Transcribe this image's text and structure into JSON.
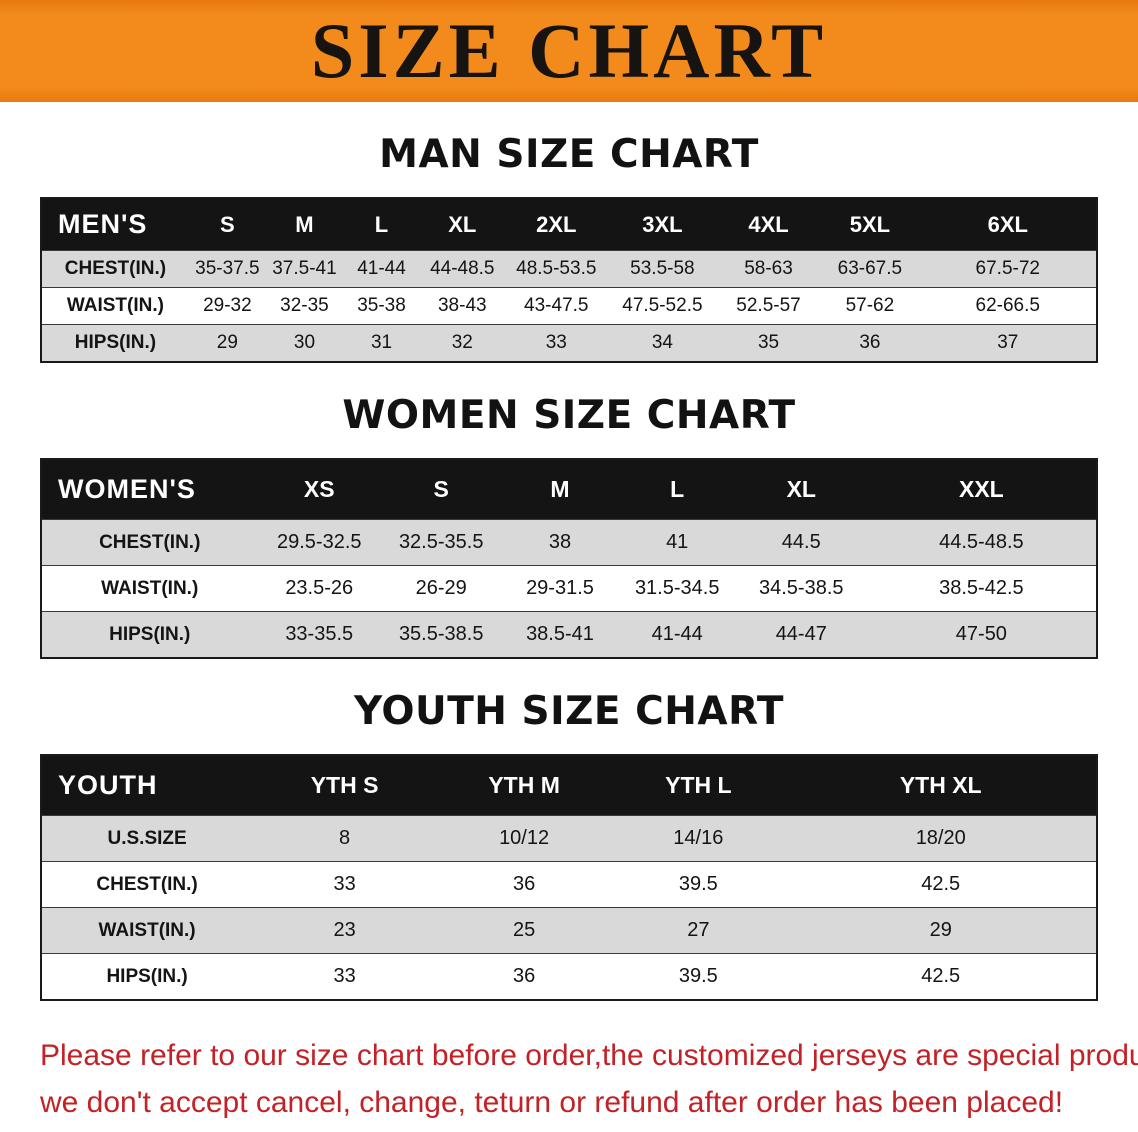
{
  "banner": {
    "title": "SIZE CHART"
  },
  "colors": {
    "banner_bg": "#f28a1c",
    "table_header_bg": "#141414",
    "table_header_text": "#ffffff",
    "stripe_row_bg": "#d9d9d9",
    "footer_text": "#c32126",
    "body_text": "#141414"
  },
  "sections": [
    {
      "id": "men",
      "heading": "MAN SIZE CHART",
      "header_label": "MEN'S",
      "columns": [
        "S",
        "M",
        "L",
        "XL",
        "2XL",
        "3XL",
        "4XL",
        "5XL",
        "6XL"
      ],
      "rows": [
        {
          "label": "CHEST(IN.)",
          "values": [
            "35-37.5",
            "37.5-41",
            "41-44",
            "44-48.5",
            "48.5-53.5",
            "53.5-58",
            "58-63",
            "63-67.5",
            "67.5-72"
          ]
        },
        {
          "label": "WAIST(IN.)",
          "values": [
            "29-32",
            "32-35",
            "35-38",
            "38-43",
            "43-47.5",
            "47.5-52.5",
            "52.5-57",
            "57-62",
            "62-66.5"
          ]
        },
        {
          "label": "HIPS(IN.)",
          "values": [
            "29",
            "30",
            "31",
            "32",
            "33",
            "34",
            "35",
            "36",
            "37"
          ]
        }
      ]
    },
    {
      "id": "women",
      "heading": "WOMEN SIZE CHART",
      "header_label": "WOMEN'S",
      "columns": [
        "XS",
        "S",
        "M",
        "L",
        "XL",
        "XXL"
      ],
      "rows": [
        {
          "label": "CHEST(IN.)",
          "values": [
            "29.5-32.5",
            "32.5-35.5",
            "38",
            "41",
            "44.5",
            "44.5-48.5"
          ]
        },
        {
          "label": "WAIST(IN.)",
          "values": [
            "23.5-26",
            "26-29",
            "29-31.5",
            "31.5-34.5",
            "34.5-38.5",
            "38.5-42.5"
          ]
        },
        {
          "label": "HIPS(IN.)",
          "values": [
            "33-35.5",
            "35.5-38.5",
            "38.5-41",
            "41-44",
            "44-47",
            "47-50"
          ]
        }
      ]
    },
    {
      "id": "youth",
      "heading": "YOUTH SIZE CHART",
      "header_label": "YOUTH",
      "columns": [
        "YTH S",
        "YTH M",
        "YTH L",
        "YTH XL"
      ],
      "rows": [
        {
          "label": "U.S.SIZE",
          "values": [
            "8",
            "10/12",
            "14/16",
            "18/20"
          ]
        },
        {
          "label": "CHEST(IN.)",
          "values": [
            "33",
            "36",
            "39.5",
            "42.5"
          ]
        },
        {
          "label": "WAIST(IN.)",
          "values": [
            "23",
            "25",
            "27",
            "29"
          ]
        },
        {
          "label": "HIPS(IN.)",
          "values": [
            "33",
            "36",
            "39.5",
            "42.5"
          ]
        }
      ]
    }
  ],
  "footer": {
    "line1": "Please refer to our size chart before order,the customized jerseys are special products,",
    "line2": "we don't accept cancel, change, teturn or refund after order has been placed!"
  }
}
